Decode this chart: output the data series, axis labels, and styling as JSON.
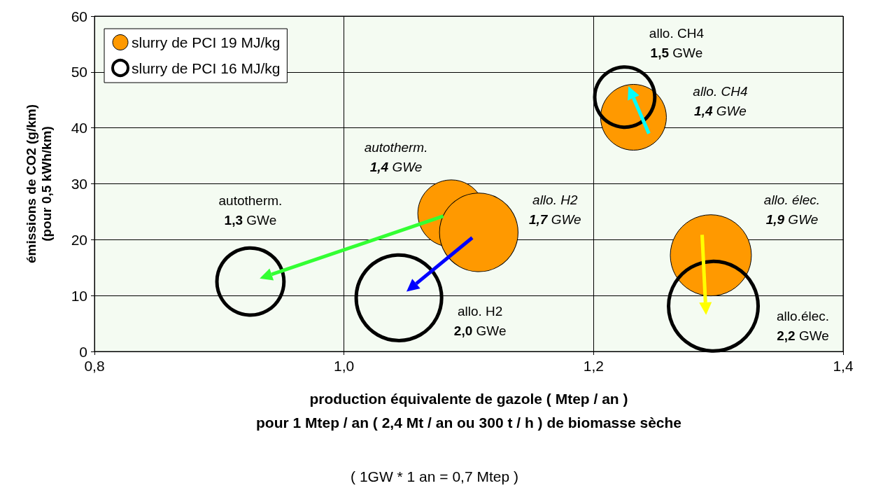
{
  "chart_data": {
    "type": "bubble",
    "xlabel": "production équivalente de gazole ( Mtep / an )\npour 1 Mtep / an ( 2,4 Mt / an ou 300 t / h ) de biomasse sèche",
    "ylabel": "émissions de CO2 (g/km)\n(pour 0,5 kWh/km)",
    "series": [
      {
        "name": "slurry de PCI 19 MJ/kg",
        "color": "#ff9900",
        "x": [
          1.086,
          1.108,
          1.232,
          1.294
        ],
        "values": [
          24.7,
          21.3,
          41.9,
          17.2
        ],
        "sizes": [
          0.56,
          0.77,
          0.54,
          0.82
        ]
      },
      {
        "name": "slurry de PCI 16 MJ/kg",
        "color": "#000000",
        "x": [
          0.925,
          1.044,
          1.225,
          1.296
        ],
        "values": [
          12.5,
          9.6,
          45.5,
          8.1
        ],
        "sizes": [
          0.56,
          0.91,
          0.45,
          1
        ]
      }
    ],
    "xlim": [
      0.8,
      1.4
    ],
    "xticks": [
      {
        "value": 0.8,
        "label": "0,8"
      },
      {
        "value": 1.0,
        "label": "1,0"
      },
      {
        "value": 1.2,
        "label": "1,2"
      },
      {
        "value": 1.4,
        "label": "1,4"
      }
    ],
    "ylim": [
      0,
      60
    ],
    "yticks": [
      0,
      10,
      20,
      30,
      40,
      50,
      60
    ],
    "grid": true,
    "legend": "top left",
    "annotations": [
      "autotherm.\n1,4 GWe",
      "allo. H2\n1,7 GWe",
      "allo. CH4\n1,4 GWe",
      "allo. élec.\n1,9 GWe",
      "autotherm.\n1,3 GWe",
      "allo. H2\n2,0 GWe",
      "allo. CH4\n1,5 GWe",
      "allo.élec.\n2,2 GWe",
      "( 1GW * 1 an = 0,7 Mtep )"
    ]
  }
}
